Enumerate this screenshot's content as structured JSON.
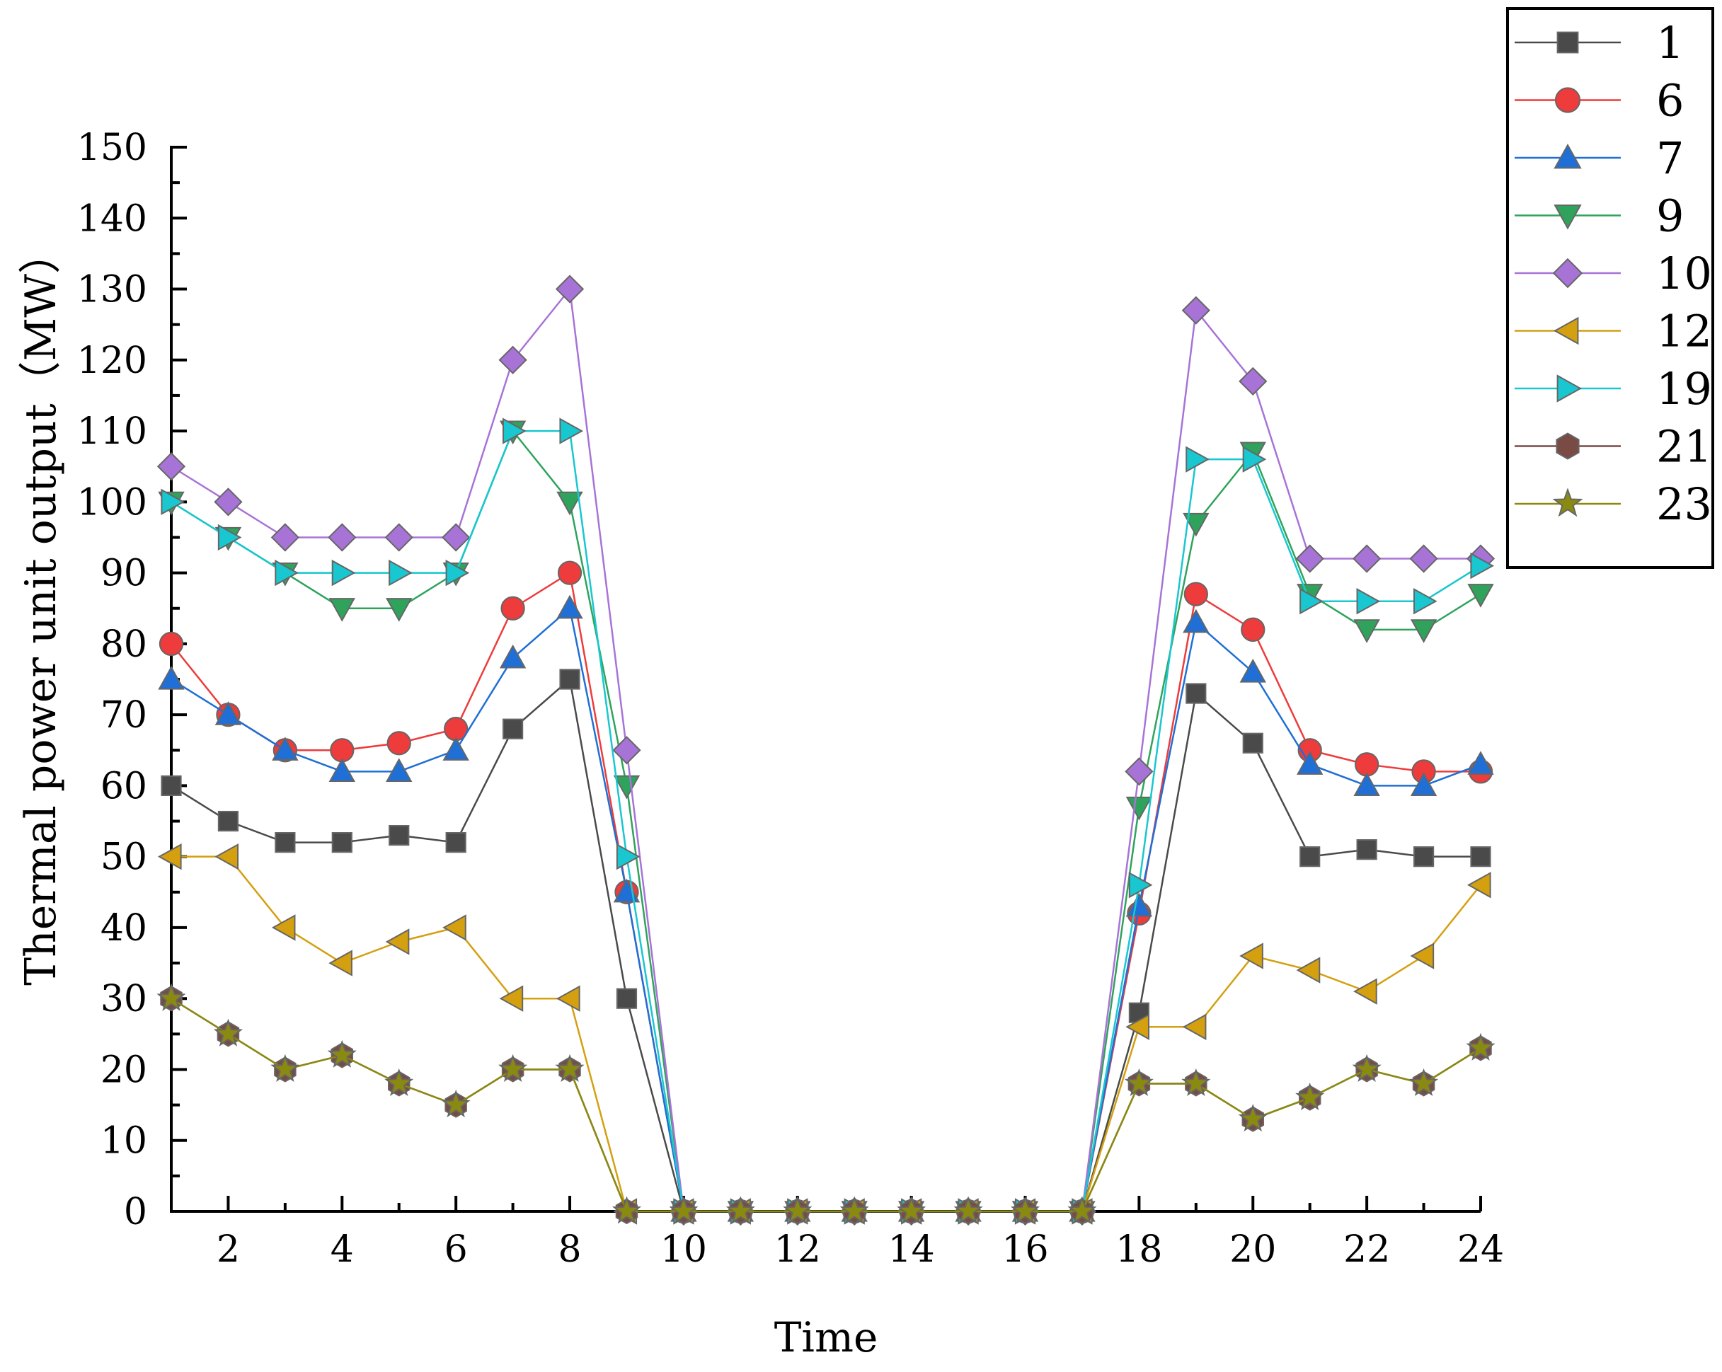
{
  "chart_data": {
    "type": "line",
    "title": "",
    "xlabel": "Time",
    "ylabel": "Thermal power unit output（MW）",
    "xlim": [
      1,
      24
    ],
    "ylim": [
      0,
      150
    ],
    "x": [
      1,
      2,
      3,
      4,
      5,
      6,
      7,
      8,
      9,
      10,
      11,
      12,
      13,
      14,
      15,
      16,
      17,
      18,
      19,
      20,
      21,
      22,
      23,
      24
    ],
    "x_ticks": [
      2,
      4,
      6,
      8,
      10,
      12,
      14,
      16,
      18,
      20,
      22,
      24
    ],
    "y_ticks": [
      0,
      10,
      20,
      30,
      40,
      50,
      60,
      70,
      80,
      90,
      100,
      110,
      120,
      130,
      140,
      150
    ],
    "legend_position": "top-right",
    "series": [
      {
        "name": "1",
        "color": "#4a4a4a",
        "marker": "square",
        "values": [
          60,
          55,
          52,
          52,
          53,
          52,
          68,
          75,
          30,
          0,
          0,
          0,
          0,
          0,
          0,
          0,
          0,
          28,
          73,
          66,
          50,
          51,
          50,
          50
        ]
      },
      {
        "name": "6",
        "color": "#ee3b3b",
        "marker": "circle",
        "values": [
          80,
          70,
          65,
          65,
          66,
          68,
          85,
          90,
          45,
          0,
          0,
          0,
          0,
          0,
          0,
          0,
          0,
          42,
          87,
          82,
          65,
          63,
          62,
          62
        ]
      },
      {
        "name": "7",
        "color": "#1f6fd6",
        "marker": "triangle-up",
        "values": [
          75,
          70,
          65,
          62,
          62,
          65,
          78,
          85,
          45,
          0,
          0,
          0,
          0,
          0,
          0,
          0,
          0,
          43,
          83,
          76,
          63,
          60,
          60,
          63
        ]
      },
      {
        "name": "9",
        "color": "#2fa35c",
        "marker": "triangle-down",
        "values": [
          100,
          95,
          90,
          85,
          85,
          90,
          110,
          100,
          60,
          0,
          0,
          0,
          0,
          0,
          0,
          0,
          0,
          57,
          97,
          107,
          87,
          82,
          82,
          87
        ]
      },
      {
        "name": "10",
        "color": "#a873d6",
        "marker": "diamond",
        "values": [
          105,
          100,
          95,
          95,
          95,
          95,
          120,
          130,
          65,
          0,
          0,
          0,
          0,
          0,
          0,
          0,
          0,
          62,
          127,
          117,
          92,
          92,
          92,
          92
        ]
      },
      {
        "name": "12",
        "color": "#d4a010",
        "marker": "triangle-left",
        "values": [
          50,
          50,
          40,
          35,
          38,
          40,
          30,
          30,
          0,
          0,
          0,
          0,
          0,
          0,
          0,
          0,
          0,
          26,
          26,
          36,
          34,
          31,
          36,
          46
        ]
      },
      {
        "name": "19",
        "color": "#18c7cf",
        "marker": "triangle-right",
        "values": [
          100,
          95,
          90,
          90,
          90,
          90,
          110,
          110,
          50,
          0,
          0,
          0,
          0,
          0,
          0,
          0,
          0,
          46,
          106,
          106,
          86,
          86,
          86,
          91
        ]
      },
      {
        "name": "21",
        "color": "#7a4a45",
        "marker": "hexagon",
        "values": [
          30,
          25,
          20,
          22,
          18,
          15,
          20,
          20,
          0,
          0,
          0,
          0,
          0,
          0,
          0,
          0,
          0,
          18,
          18,
          13,
          16,
          20,
          18,
          23
        ]
      },
      {
        "name": "23",
        "color": "#8a8a10",
        "marker": "star",
        "values": [
          30,
          25,
          20,
          22,
          18,
          15,
          20,
          20,
          0,
          0,
          0,
          0,
          0,
          0,
          0,
          0,
          0,
          18,
          18,
          13,
          16,
          20,
          18,
          23
        ]
      }
    ]
  }
}
